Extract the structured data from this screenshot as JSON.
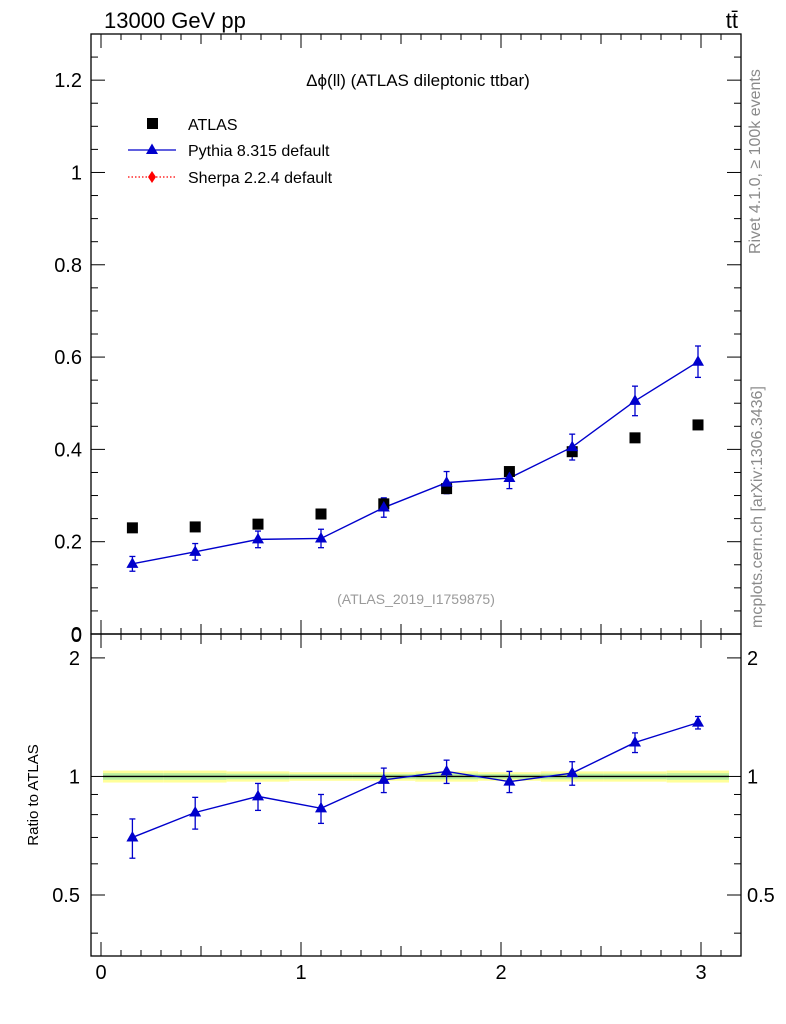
{
  "header": {
    "energy_label": "13000 GeV pp",
    "process_label": "tt̄"
  },
  "side_labels": {
    "rivet": "Rivet 4.1.0, ≥ 100k events",
    "mcplots": "mcplots.cern.ch [arXiv:1306.3436]"
  },
  "chart_data": {
    "type": "scatter",
    "title": "Δϕ(ll) (ATLAS dileptonic ttbar)",
    "analysis_id": "(ATLAS_2019_I1759875)",
    "x": [
      0.157,
      0.471,
      0.785,
      1.1,
      1.414,
      1.728,
      2.042,
      2.356,
      2.67,
      2.985
    ],
    "xlim": [
      -0.05,
      3.2
    ],
    "xticks": [
      "0",
      "1",
      "2",
      "3"
    ],
    "series": [
      {
        "name": "ATLAS",
        "color": "#000000",
        "marker": "square",
        "values": [
          0.23,
          0.232,
          0.238,
          0.26,
          0.282,
          0.315,
          0.352,
          0.395,
          0.425,
          0.453
        ]
      },
      {
        "name": "Pythia 8.315 default",
        "color": "#0000cc",
        "marker": "triangle",
        "values": [
          0.152,
          0.178,
          0.205,
          0.207,
          0.274,
          0.328,
          0.338,
          0.405,
          0.505,
          0.59
        ],
        "errors": [
          0.016,
          0.018,
          0.018,
          0.02,
          0.021,
          0.024,
          0.023,
          0.028,
          0.032,
          0.034
        ]
      },
      {
        "name": "Sherpa 2.2.4 default",
        "color": "#ff0000",
        "marker": "diamond",
        "values": []
      }
    ],
    "main_panel": {
      "ylim": [
        0,
        1.3
      ],
      "yticks": [
        "0",
        "0.2",
        "0.4",
        "0.6",
        "0.8",
        "1",
        "1.2"
      ]
    },
    "ratio_panel": {
      "ylabel": "Ratio to ATLAS",
      "ylim": [
        0.35,
        2.3
      ],
      "yticks": [
        "0.5",
        "1",
        "2"
      ],
      "values": [
        0.7,
        0.81,
        0.89,
        0.83,
        0.98,
        1.03,
        0.97,
        1.02,
        1.22,
        1.37
      ],
      "errors": [
        0.08,
        0.075,
        0.07,
        0.07,
        0.07,
        0.07,
        0.06,
        0.07,
        0.07,
        0.05
      ],
      "band_halfwidth": [
        0.035,
        0.035,
        0.03,
        0.025,
        0.025,
        0.03,
        0.025,
        0.03,
        0.03,
        0.035
      ]
    }
  }
}
